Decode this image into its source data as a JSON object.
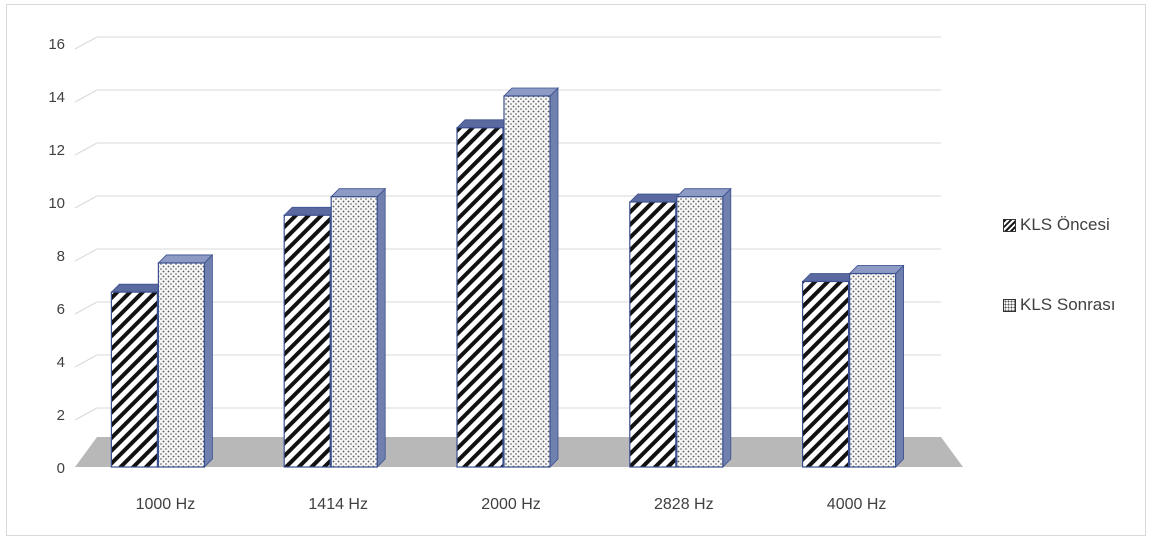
{
  "chart_data": {
    "type": "bar",
    "title": "",
    "xlabel": "",
    "ylabel": "",
    "categories": [
      "1000 Hz",
      "1414 Hz",
      "2000 Hz",
      "2828 Hz",
      "4000 Hz"
    ],
    "series": [
      {
        "name": "KLS Öncesi",
        "values": [
          6.6,
          9.5,
          12.8,
          10.0,
          7.0
        ]
      },
      {
        "name": "KLS Sonrası",
        "values": [
          7.7,
          10.2,
          14.0,
          10.2,
          7.3
        ]
      }
    ],
    "ylim": [
      0,
      16
    ],
    "yticks": [
      "0",
      "2",
      "4",
      "6",
      "8",
      "10",
      "12",
      "14",
      "16"
    ],
    "grid": true,
    "legend": "right",
    "three_d": true
  },
  "colors": {
    "grid": "#d9d9d9",
    "floor": "#b8b8b8",
    "bar_edge": "#3a4f8f",
    "bar_side": "#6f7fae",
    "before_stripe": "#111111",
    "after_dot": "#555555",
    "axis_text": "#404040"
  },
  "legend_labels": [
    "KLS Öncesi",
    "KLS Sonrası"
  ]
}
